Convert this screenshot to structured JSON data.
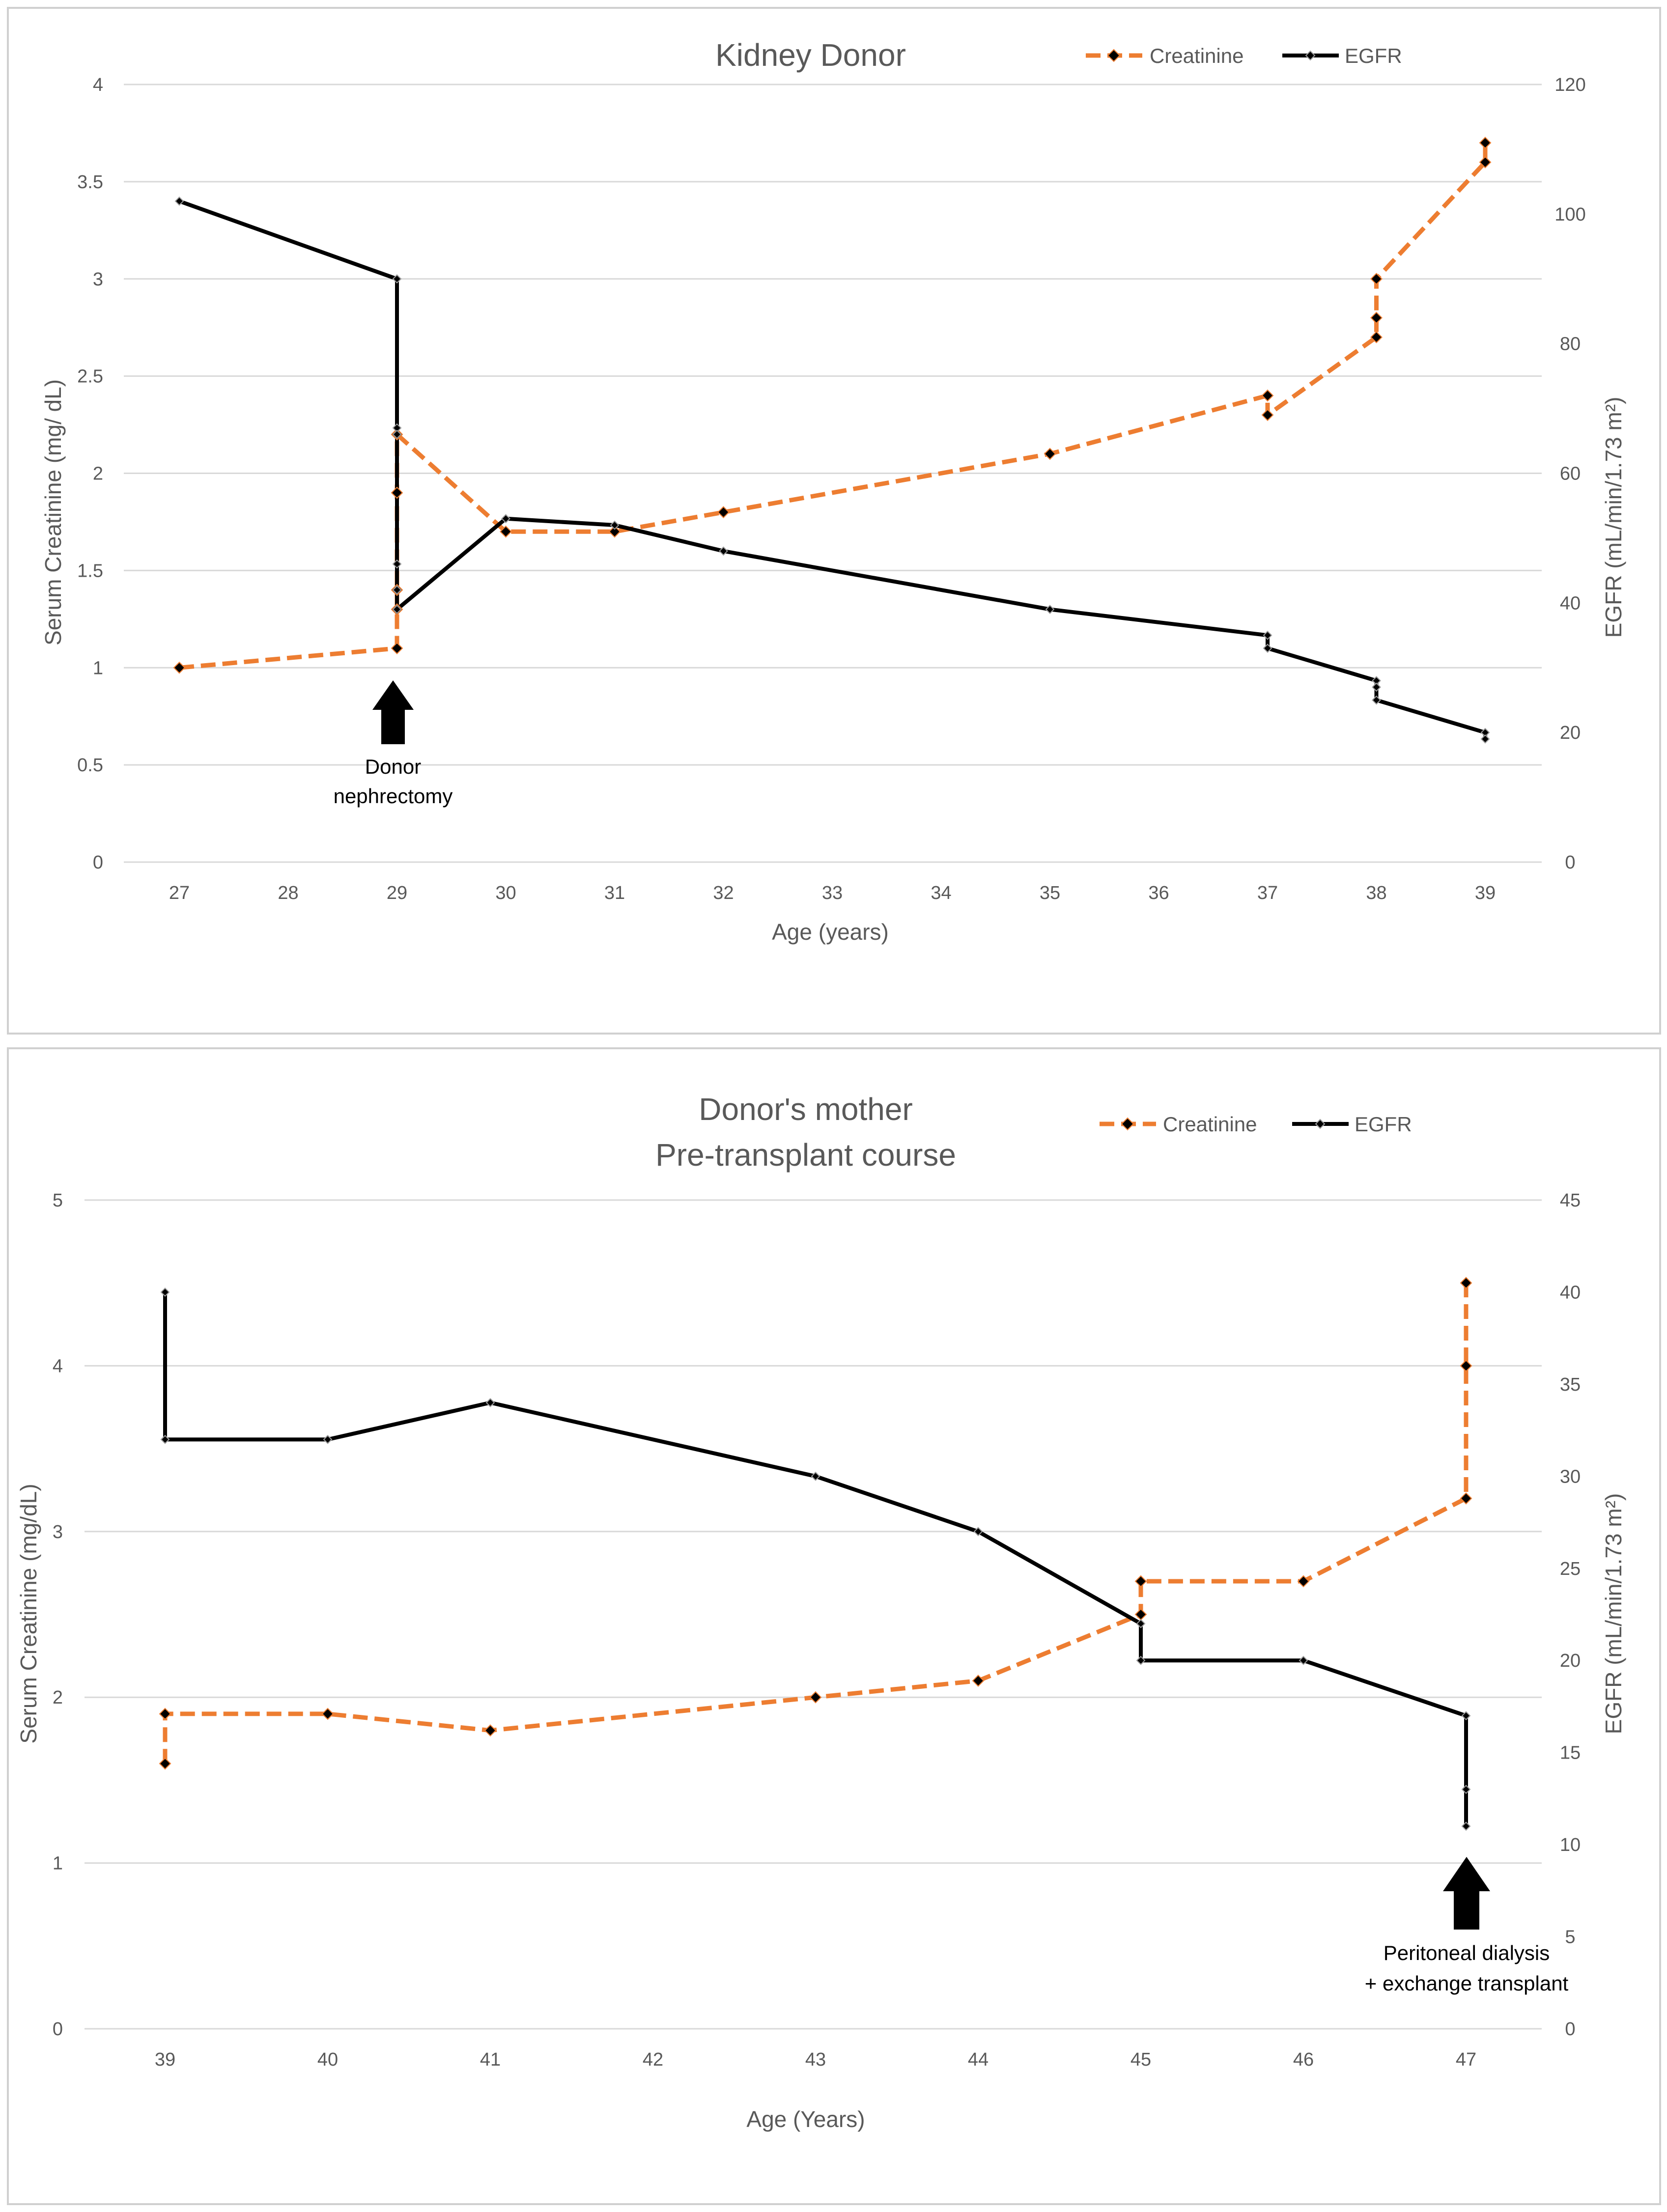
{
  "chart_data": [
    {
      "type": "line",
      "title": "Kidney Donor",
      "xlabel": "Age (years)",
      "ylabel": "Serum Creatinine (mg/ dL)",
      "y2label": "EGFR (mL/min/1.73 m²)",
      "categories": [
        "27",
        "28",
        "29",
        "30",
        "31",
        "32",
        "33",
        "34",
        "35",
        "36",
        "37",
        "38",
        "39"
      ],
      "ylim": [
        0,
        4
      ],
      "yticks": [
        "0",
        "0.5",
        "1",
        "1.5",
        "2",
        "2.5",
        "3",
        "3.5",
        "4"
      ],
      "y2lim": [
        0,
        120
      ],
      "y2ticks": [
        "0",
        "20",
        "40",
        "60",
        "80",
        "100",
        "120"
      ],
      "legend": "top-right",
      "grid": true,
      "series": [
        {
          "name": "Creatinine",
          "axis": "left",
          "color": "#ED7D31",
          "points": [
            [
              27,
              1.0
            ],
            [
              29,
              1.1
            ],
            [
              29,
              1.3
            ],
            [
              29,
              1.4
            ],
            [
              29,
              1.9
            ],
            [
              29,
              2.2
            ],
            [
              30,
              1.7
            ],
            [
              31,
              1.7
            ],
            [
              32,
              1.8
            ],
            [
              35,
              2.1
            ],
            [
              37,
              2.4
            ],
            [
              37,
              2.3
            ],
            [
              38,
              2.7
            ],
            [
              38,
              2.8
            ],
            [
              38,
              3.0
            ],
            [
              39,
              3.6
            ],
            [
              39,
              3.7
            ]
          ]
        },
        {
          "name": "EGFR",
          "axis": "right",
          "color": "#000000",
          "points": [
            [
              27,
              102
            ],
            [
              29,
              90
            ],
            [
              29,
              67
            ],
            [
              29,
              66
            ],
            [
              29,
              46
            ],
            [
              29,
              42
            ],
            [
              29,
              39
            ],
            [
              30,
              53
            ],
            [
              31,
              52
            ],
            [
              32,
              48
            ],
            [
              35,
              39
            ],
            [
              37,
              35
            ],
            [
              37,
              33
            ],
            [
              38,
              28
            ],
            [
              38,
              27
            ],
            [
              38,
              25
            ],
            [
              39,
              20
            ],
            [
              39,
              19
            ]
          ]
        }
      ],
      "annotations": [
        {
          "x": 29,
          "lines": [
            "Donor",
            "nephrectomy"
          ]
        }
      ]
    },
    {
      "type": "line",
      "title": "Donor's mother",
      "subtitle": "Pre-transplant course",
      "xlabel": "Age (Years)",
      "ylabel": "Serum Creatinine (mg/dL)",
      "y2label": "EGFR (mL/min/1.73 m²)",
      "categories": [
        "39",
        "40",
        "41",
        "42",
        "43",
        "44",
        "45",
        "46",
        "47"
      ],
      "ylim": [
        0,
        5
      ],
      "yticks": [
        "0",
        "1",
        "2",
        "3",
        "4",
        "5"
      ],
      "y2lim": [
        0,
        45
      ],
      "y2ticks": [
        "0",
        "5",
        "10",
        "15",
        "20",
        "25",
        "30",
        "35",
        "40",
        "45"
      ],
      "legend": "top-right",
      "grid": true,
      "series": [
        {
          "name": "Creatinine",
          "axis": "left",
          "color": "#ED7D31",
          "points": [
            [
              39,
              1.6
            ],
            [
              39,
              1.9
            ],
            [
              40,
              1.9
            ],
            [
              41,
              1.8
            ],
            [
              43,
              2.0
            ],
            [
              44,
              2.1
            ],
            [
              45,
              2.5
            ],
            [
              45,
              2.7
            ],
            [
              46,
              2.7
            ],
            [
              47,
              3.2
            ],
            [
              47,
              4.0
            ],
            [
              47,
              4.5
            ]
          ]
        },
        {
          "name": "EGFR",
          "axis": "right",
          "color": "#000000",
          "points": [
            [
              39,
              40
            ],
            [
              39,
              32
            ],
            [
              40,
              32
            ],
            [
              41,
              34
            ],
            [
              43,
              30
            ],
            [
              44,
              27
            ],
            [
              45,
              22
            ],
            [
              45,
              20
            ],
            [
              46,
              20
            ],
            [
              47,
              17
            ],
            [
              47,
              13
            ],
            [
              47,
              11
            ]
          ]
        }
      ],
      "annotations": [
        {
          "x": 47,
          "lines": [
            "Peritoneal dialysis",
            "+ exchange transplant"
          ]
        }
      ]
    }
  ]
}
